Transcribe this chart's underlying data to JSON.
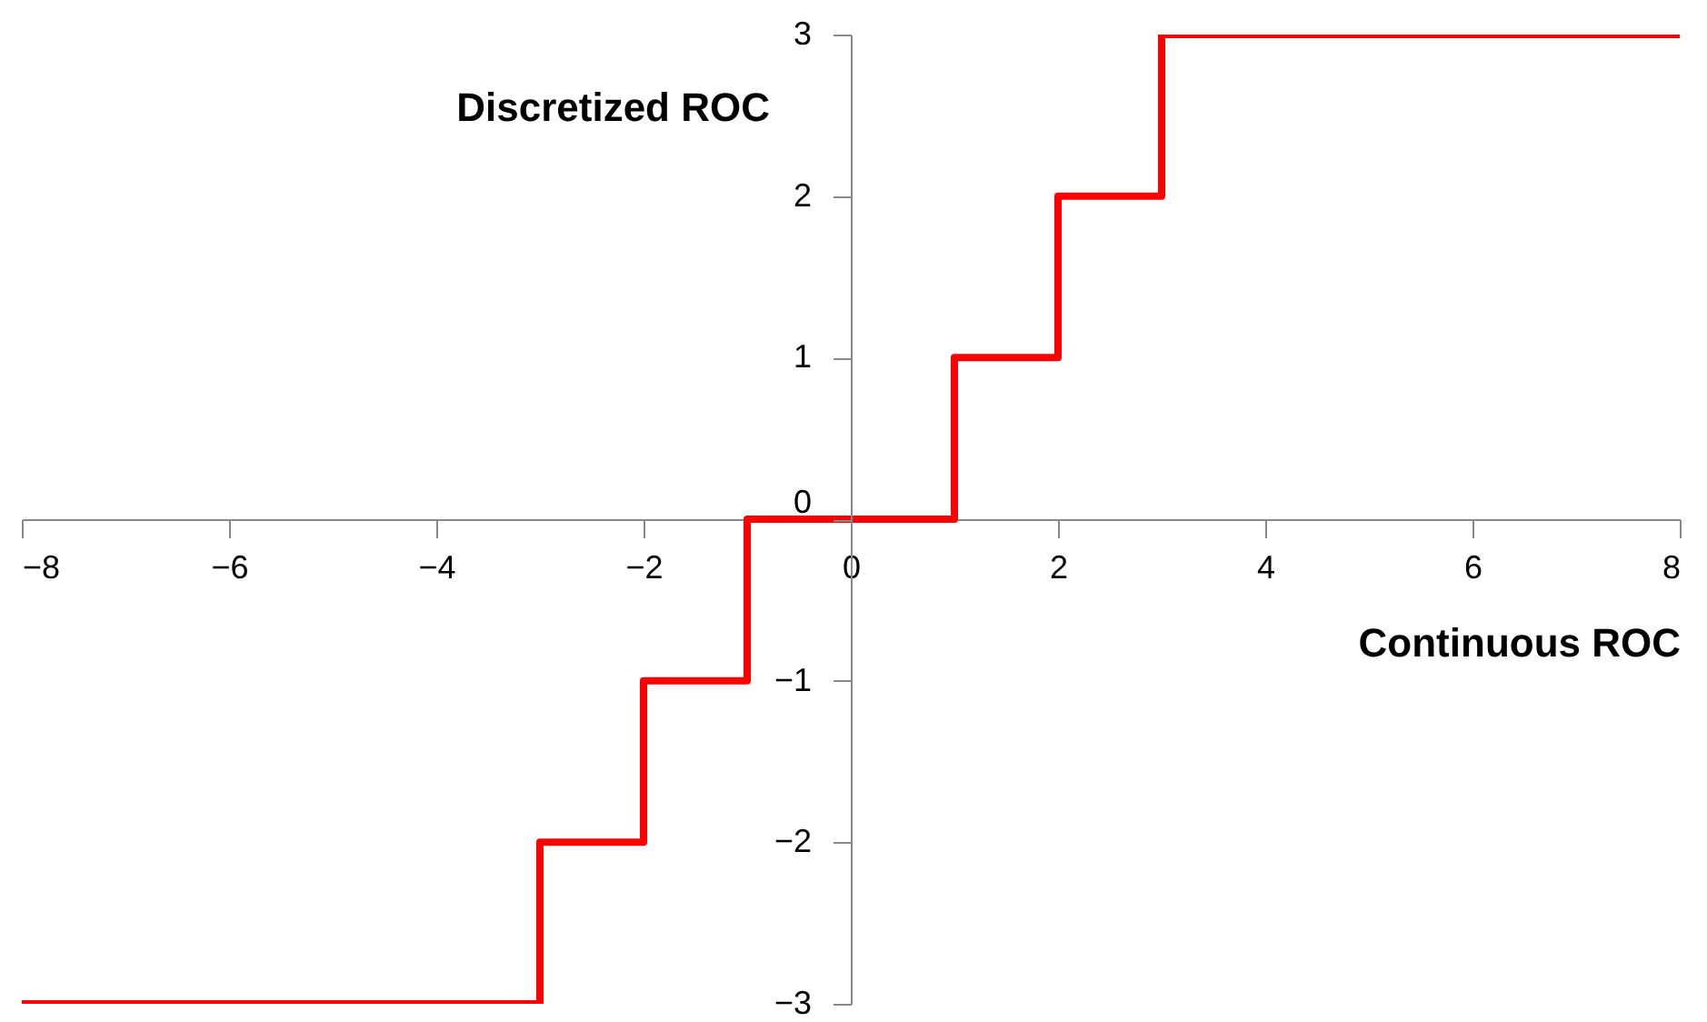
{
  "chart_data": {
    "type": "step",
    "xlabel": "Continuous ROC",
    "ylabel": "Discretized ROC",
    "x": [
      -8,
      -3,
      -2,
      -1,
      1,
      2,
      3,
      8
    ],
    "series": [
      {
        "color": "#ff0000",
        "values": [
          -3,
          -2,
          -1,
          0,
          1,
          2,
          3,
          3
        ]
      }
    ],
    "xlim": [
      -8,
      8
    ],
    "ylim": [
      -3,
      3
    ],
    "xticks": [
      -8,
      -6,
      -4,
      -2,
      0,
      2,
      4,
      6,
      8
    ],
    "yticks": [
      -3,
      -2,
      -1,
      0,
      1,
      2,
      3
    ],
    "grid": false
  }
}
